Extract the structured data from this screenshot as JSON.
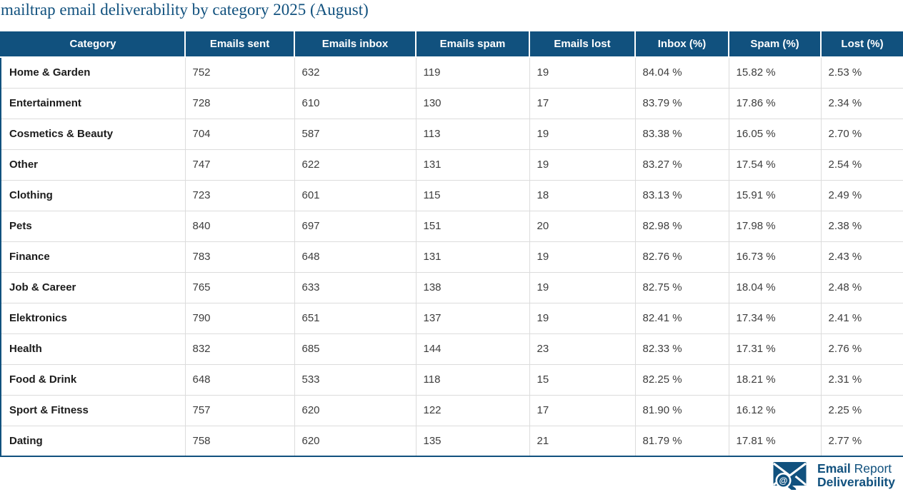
{
  "page_title": "mailtrap email deliverability by category 2025 (August)",
  "colors": {
    "accent": "#11517E",
    "row_line": "#DCDCDC",
    "header_text": "#FFFFFF",
    "category_text": "#1C1C1C",
    "value_text": "#3D3D3D"
  },
  "chart_data": {
    "type": "table",
    "title": "mailtrap email deliverability by category 2025 (August)",
    "columns": [
      "Category",
      "Emails sent",
      "Emails inbox",
      "Emails spam",
      "Emails lost",
      "Inbox (%)",
      "Spam (%)",
      "Lost (%)"
    ],
    "rows": [
      [
        "Home & Garden",
        "752",
        "632",
        "119",
        "19",
        "84.04 %",
        "15.82 %",
        "2.53 %"
      ],
      [
        "Entertainment",
        "728",
        "610",
        "130",
        "17",
        "83.79 %",
        "17.86 %",
        "2.34 %"
      ],
      [
        "Cosmetics & Beauty",
        "704",
        "587",
        "113",
        "19",
        "83.38 %",
        "16.05 %",
        "2.70 %"
      ],
      [
        "Other",
        "747",
        "622",
        "131",
        "19",
        "83.27 %",
        "17.54 %",
        "2.54 %"
      ],
      [
        "Clothing",
        "723",
        "601",
        "115",
        "18",
        "83.13 %",
        "15.91 %",
        "2.49 %"
      ],
      [
        "Pets",
        "840",
        "697",
        "151",
        "20",
        "82.98 %",
        "17.98 %",
        "2.38 %"
      ],
      [
        "Finance",
        "783",
        "648",
        "131",
        "19",
        "82.76 %",
        "16.73 %",
        "2.43 %"
      ],
      [
        "Job & Career",
        "765",
        "633",
        "138",
        "19",
        "82.75 %",
        "18.04 %",
        "2.48 %"
      ],
      [
        "Elektronics",
        "790",
        "651",
        "137",
        "19",
        "82.41 %",
        "17.34 %",
        "2.41 %"
      ],
      [
        "Health",
        "832",
        "685",
        "144",
        "23",
        "82.33 %",
        "17.31 %",
        "2.76 %"
      ],
      [
        "Food & Drink",
        "648",
        "533",
        "118",
        "15",
        "82.25 %",
        "18.21 %",
        "2.31 %"
      ],
      [
        "Sport & Fitness",
        "757",
        "620",
        "122",
        "17",
        "81.90 %",
        "16.12 %",
        "2.25 %"
      ],
      [
        "Dating",
        "758",
        "620",
        "135",
        "21",
        "81.79 %",
        "17.81 %",
        "2.77 %"
      ]
    ]
  },
  "logo": {
    "line1_bold": "Email",
    "line1_regular": "Report",
    "line2_bold": "Deliverability",
    "icon_at_symbol": "@"
  }
}
